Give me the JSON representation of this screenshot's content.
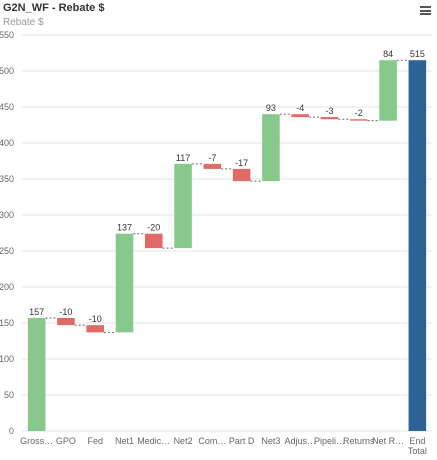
{
  "header": {
    "title": "G2N_WF - Rebate $",
    "subtitle": "Rebate $",
    "menu_icon": "hamburger-menu-icon"
  },
  "colors": {
    "increase": "#86c98a",
    "decrease": "#e06b66",
    "total": "#2d6394",
    "grid": "#e6e6e6",
    "axis_text": "#666666",
    "label_text": "#333333",
    "connector": "#666666"
  },
  "chart_data": {
    "type": "bar",
    "subtype": "waterfall",
    "title": "G2N_WF - Rebate $",
    "subtitle": "Rebate $",
    "ylim": [
      0,
      550
    ],
    "yticks": [
      0,
      50,
      100,
      150,
      200,
      250,
      300,
      350,
      400,
      450,
      500,
      550
    ],
    "grid": true,
    "categories": [
      "Gross…",
      "GPO",
      "Fed",
      "Net1",
      "Medic…",
      "Net2",
      "Com…",
      "Part D",
      "Net3",
      "Adjus…",
      "Pipeli…",
      "Returns",
      "Net R…",
      "End Total"
    ],
    "bars": [
      {
        "label": "157",
        "start": 0,
        "end": 157,
        "kind": "increase"
      },
      {
        "label": "-10",
        "start": 157,
        "end": 147,
        "kind": "decrease"
      },
      {
        "label": "-10",
        "start": 147,
        "end": 137,
        "kind": "decrease"
      },
      {
        "label": "137",
        "start": 137,
        "end": 274,
        "kind": "increase"
      },
      {
        "label": "-20",
        "start": 274,
        "end": 254,
        "kind": "decrease"
      },
      {
        "label": "117",
        "start": 254,
        "end": 371,
        "kind": "increase"
      },
      {
        "label": "-7",
        "start": 371,
        "end": 364,
        "kind": "decrease"
      },
      {
        "label": "-17",
        "start": 364,
        "end": 347,
        "kind": "decrease"
      },
      {
        "label": "93",
        "start": 347,
        "end": 440,
        "kind": "increase"
      },
      {
        "label": "-4",
        "start": 440,
        "end": 436,
        "kind": "decrease"
      },
      {
        "label": "-3",
        "start": 436,
        "end": 433,
        "kind": "decrease"
      },
      {
        "label": "-2",
        "start": 433,
        "end": 431,
        "kind": "decrease"
      },
      {
        "label": "84",
        "start": 431,
        "end": 515,
        "kind": "increase"
      },
      {
        "label": "515",
        "start": 0,
        "end": 515,
        "kind": "total"
      }
    ]
  }
}
